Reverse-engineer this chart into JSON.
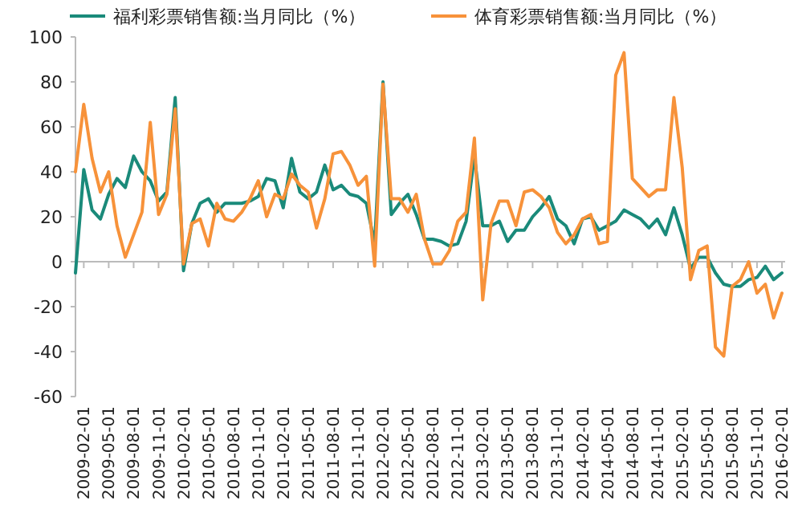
{
  "chart_data": {
    "type": "line",
    "legend": "top",
    "marker": "none",
    "line_style": "solid",
    "categories": [
      null,
      "2009-02-01",
      null,
      null,
      "2009-05-01",
      null,
      null,
      "2009-08-01",
      null,
      null,
      "2009-11-01",
      null,
      null,
      "2010-02-01",
      null,
      null,
      "2010-05-01",
      null,
      null,
      "2010-08-01",
      null,
      null,
      "2010-11-01",
      null,
      null,
      "2011-02-01",
      null,
      null,
      "2011-05-01",
      null,
      null,
      "2011-08-01",
      null,
      null,
      "2011-11-01",
      null,
      null,
      "2012-02-01",
      null,
      null,
      "2012-05-01",
      null,
      null,
      "2012-08-01",
      null,
      null,
      "2012-11-01",
      null,
      null,
      "2013-02-01",
      null,
      null,
      "2013-05-01",
      null,
      null,
      "2013-08-01",
      null,
      null,
      "2013-11-01",
      null,
      null,
      "2014-02-01",
      null,
      null,
      "2014-05-01",
      null,
      null,
      "2014-08-01",
      null,
      null,
      "2014-11-01",
      null,
      null,
      "2015-02-01",
      null,
      null,
      "2015-05-01",
      null,
      null,
      "2015-08-01",
      null,
      null,
      "2015-11-01",
      null,
      null,
      "2016-02-01"
    ],
    "ylim": [
      -60,
      100
    ],
    "yticks": [
      -60,
      -40,
      -20,
      0,
      20,
      40,
      60,
      80,
      100
    ],
    "series": [
      {
        "name": "福利彩票销售额:当月同比（%）",
        "color": "#1a8a7a",
        "values": [
          -5,
          41,
          23,
          19,
          30,
          37,
          33,
          47,
          40,
          36,
          27,
          31,
          73,
          -4,
          17,
          26,
          28,
          22,
          26,
          26,
          26,
          27,
          29,
          37,
          36,
          24,
          46,
          31,
          28,
          31,
          43,
          32,
          34,
          30,
          29,
          26,
          8,
          80,
          21,
          26,
          30,
          21,
          10,
          10,
          9,
          7,
          8,
          18,
          47,
          16,
          16,
          18,
          9,
          14,
          14,
          20,
          24,
          29,
          19,
          16,
          8,
          19,
          20,
          14,
          16,
          18,
          23,
          21,
          19,
          15,
          19,
          12,
          24,
          12,
          -3,
          2,
          2,
          -5,
          -10,
          -11,
          -11,
          -8,
          -7,
          -2,
          -8,
          -5
        ]
      },
      {
        "name": "体育彩票销售额:当月同比（%）",
        "color": "#f7923a",
        "values": [
          40,
          70,
          46,
          31,
          40,
          16,
          2,
          12,
          22,
          62,
          21,
          30,
          68,
          -1,
          17,
          19,
          7,
          26,
          19,
          18,
          22,
          28,
          36,
          20,
          30,
          28,
          39,
          34,
          31,
          15,
          28,
          48,
          49,
          43,
          34,
          38,
          -2,
          79,
          28,
          28,
          22,
          30,
          10,
          -1,
          -1,
          5,
          18,
          22,
          55,
          -17,
          17,
          27,
          27,
          16,
          31,
          32,
          29,
          24,
          13,
          8,
          12,
          19,
          21,
          8,
          9,
          83,
          93,
          37,
          33,
          29,
          32,
          32,
          73,
          42,
          -8,
          5,
          7,
          -38,
          -42,
          -11,
          -8,
          0,
          -14,
          -10,
          -25,
          -14
        ]
      }
    ]
  }
}
